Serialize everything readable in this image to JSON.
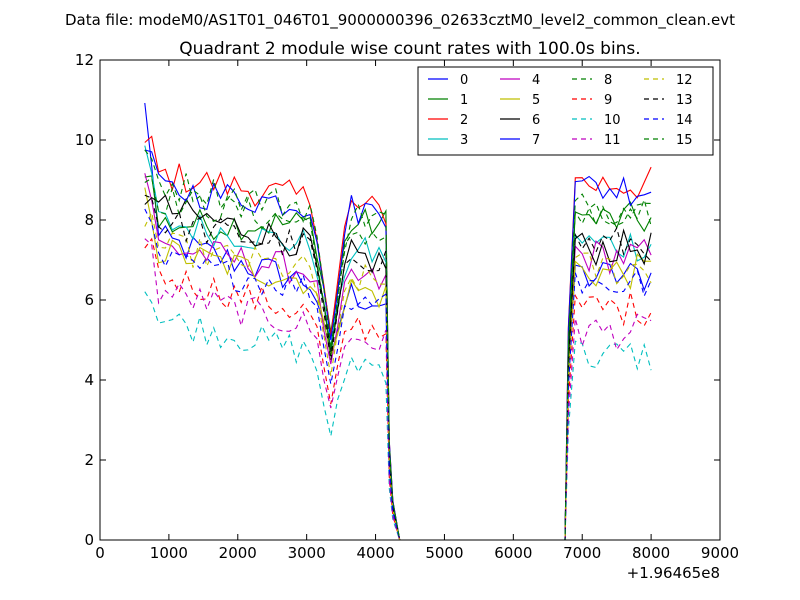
{
  "header": {
    "data_file": "Data file: modeM0/AS1T01_046T01_9000000396_02633cztM0_level2_common_clean.evt"
  },
  "chart_data": {
    "type": "line",
    "title": "Quadrant 2 module wise count rates with 100.0s bins.",
    "xlabel": "",
    "ylabel": "",
    "x_offset_label": "+1.96465e8",
    "xlim": [
      0,
      9000
    ],
    "ylim": [
      0,
      12
    ],
    "xticks": [
      "0",
      "1000",
      "2000",
      "3000",
      "4000",
      "5000",
      "6000",
      "7000",
      "8000",
      "9000"
    ],
    "yticks": [
      "0",
      "2",
      "4",
      "6",
      "8",
      "10",
      "12"
    ],
    "legend_position": "top-right",
    "segments": [
      {
        "start": 650,
        "end": 4150,
        "step": 100
      },
      {
        "start": 6800,
        "end": 8050,
        "step": 100
      }
    ],
    "gap_zero_range": [
      4350,
      6750
    ],
    "dip_center": 3350,
    "series": [
      {
        "name": "0",
        "color": "#0000ff",
        "style": "solid",
        "base1": 7.6,
        "end1": 5.9,
        "base2": 6.6,
        "dip": 4.6,
        "peak": 10.8
      },
      {
        "name": "1",
        "color": "#008000",
        "style": "solid",
        "base1": 7.9,
        "end1": 7.9,
        "base2": 8.0,
        "dip": 5.2,
        "peak": 9.4
      },
      {
        "name": "2",
        "color": "#ff0000",
        "style": "solid",
        "base1": 9.2,
        "end1": 8.2,
        "base2": 8.9,
        "dip": 5.1,
        "peak": 9.8
      },
      {
        "name": "3",
        "color": "#00bfbf",
        "style": "solid",
        "base1": 8.0,
        "end1": 7.1,
        "base2": 7.4,
        "dip": 4.8,
        "peak": 9.7
      },
      {
        "name": "4",
        "color": "#bf00bf",
        "style": "solid",
        "base1": 7.4,
        "end1": 6.4,
        "base2": 7.1,
        "dip": 4.4,
        "peak": 9.2
      },
      {
        "name": "5",
        "color": "#bfbf00",
        "style": "solid",
        "base1": 7.3,
        "end1": 6.1,
        "base2": 6.7,
        "dip": 4.6,
        "peak": 8.5
      },
      {
        "name": "6",
        "color": "#000000",
        "style": "solid",
        "base1": 8.4,
        "end1": 6.9,
        "base2": 7.3,
        "dip": 4.7,
        "peak": 8.6
      },
      {
        "name": "7",
        "color": "#0000ff",
        "style": "solid",
        "base1": 8.8,
        "end1": 8.2,
        "base2": 8.8,
        "dip": 5.0,
        "peak": 9.8
      },
      {
        "name": "8",
        "color": "#008000",
        "style": "dashed",
        "base1": 8.6,
        "end1": 7.6,
        "base2": 8.0,
        "dip": 4.6,
        "peak": 9.0
      },
      {
        "name": "9",
        "color": "#ff0000",
        "style": "dashed",
        "base1": 6.7,
        "end1": 5.2,
        "base2": 5.8,
        "dip": 3.4,
        "peak": 7.6
      },
      {
        "name": "10",
        "color": "#00bfbf",
        "style": "dashed",
        "base1": 5.6,
        "end1": 4.3,
        "base2": 4.6,
        "dip": 2.6,
        "peak": 6.3
      },
      {
        "name": "11",
        "color": "#bf00bf",
        "style": "dashed",
        "base1": 6.3,
        "end1": 4.9,
        "base2": 5.2,
        "dip": 3.3,
        "peak": 7.4
      },
      {
        "name": "12",
        "color": "#bfbf00",
        "style": "dashed",
        "base1": 7.4,
        "end1": 6.4,
        "base2": 6.8,
        "dip": 4.1,
        "peak": 8.1
      },
      {
        "name": "13",
        "color": "#000000",
        "style": "dashed",
        "base1": 8.0,
        "end1": 7.0,
        "base2": 7.4,
        "dip": 4.5,
        "peak": 8.6
      },
      {
        "name": "14",
        "color": "#0000ff",
        "style": "dashed",
        "base1": 7.0,
        "end1": 6.0,
        "base2": 6.4,
        "dip": 3.9,
        "peak": 7.9
      },
      {
        "name": "15",
        "color": "#008000",
        "style": "dashed",
        "base1": 9.0,
        "end1": 8.0,
        "base2": 8.3,
        "dip": 4.8,
        "peak": 9.4
      }
    ]
  }
}
